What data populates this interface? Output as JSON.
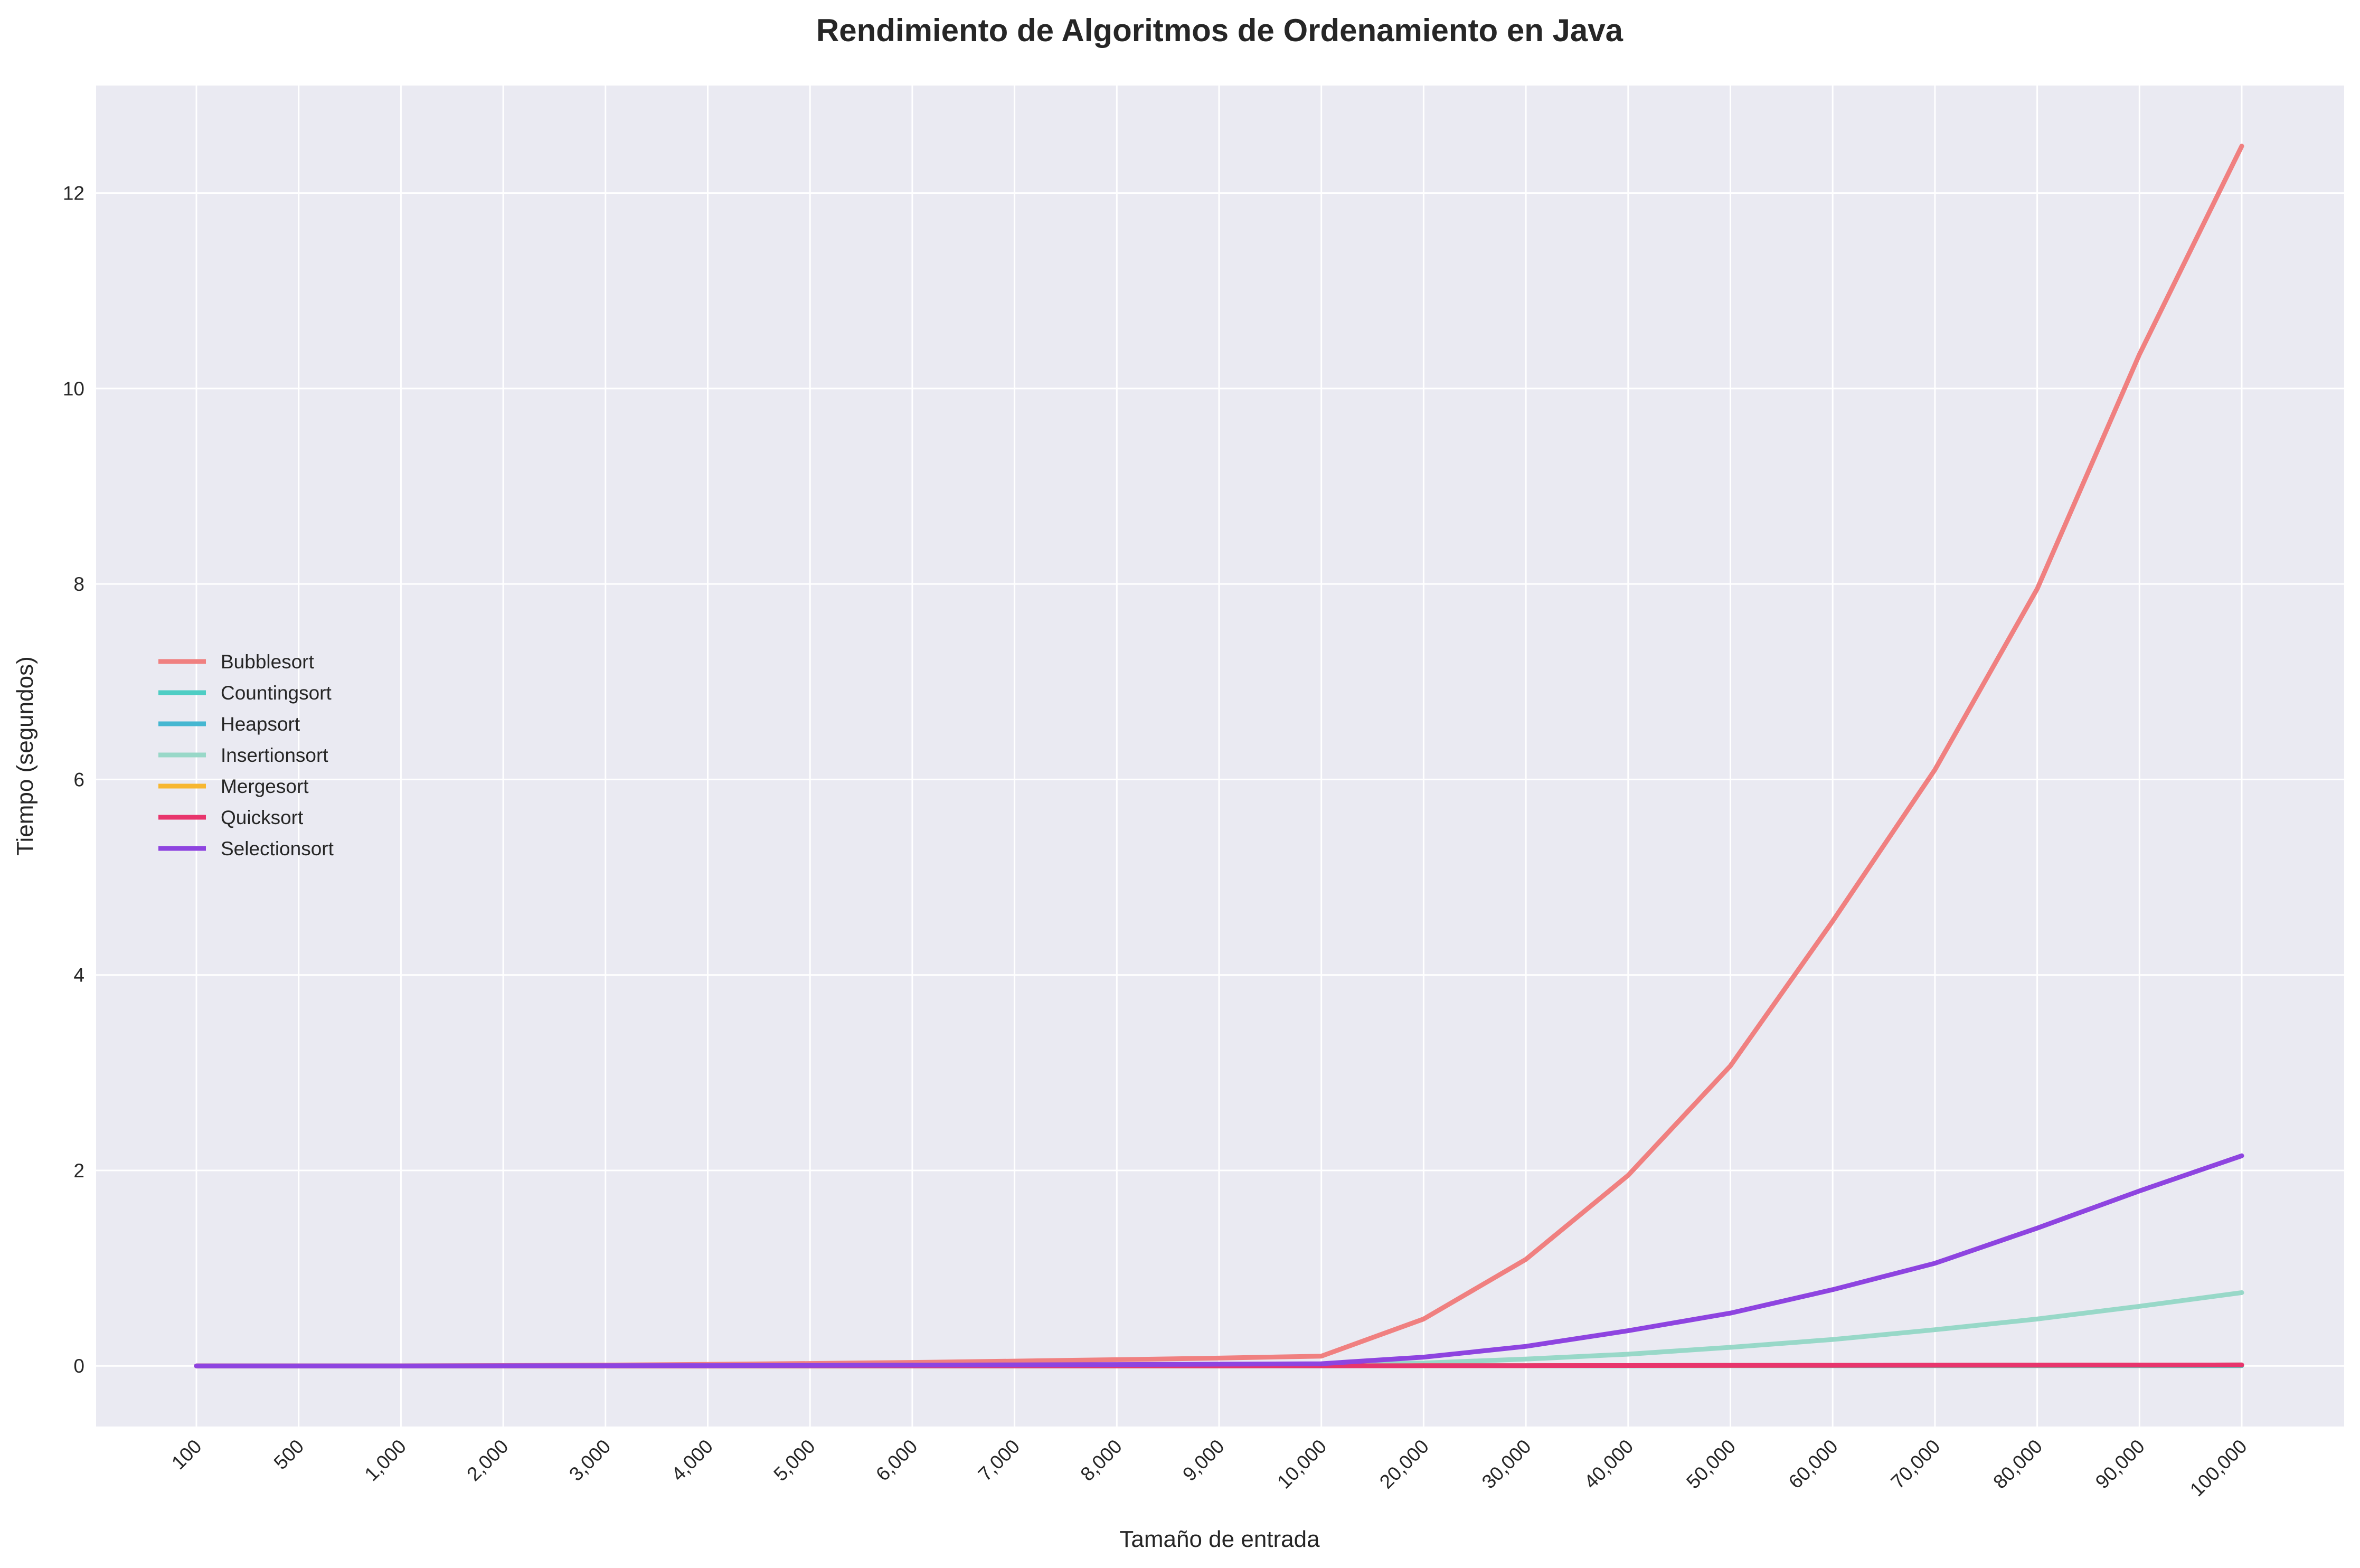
{
  "chart_data": {
    "type": "line",
    "title": "Rendimiento de Algoritmos de Ordenamiento en Java",
    "xlabel": "Tamaño de entrada",
    "ylabel": "Tiempo (segundos)",
    "x_scale": "categorical",
    "categories": [
      "100",
      "500",
      "1,000",
      "2,000",
      "3,000",
      "4,000",
      "5,000",
      "6,000",
      "7,000",
      "8,000",
      "9,000",
      "10,000",
      "20,000",
      "30,000",
      "40,000",
      "50,000",
      "60,000",
      "70,000",
      "80,000",
      "90,000",
      "100,000"
    ],
    "ylim": [
      -0.62,
      13.1
    ],
    "yticks": [
      0,
      2,
      4,
      6,
      8,
      10,
      12
    ],
    "grid": true,
    "legend_position": "center-left",
    "background_color": "#eaeaf2",
    "series": [
      {
        "name": "Bubblesort",
        "color": "#f08080",
        "values": [
          0.0001,
          0.0005,
          0.0012,
          0.004,
          0.009,
          0.016,
          0.025,
          0.036,
          0.049,
          0.064,
          0.08,
          0.1,
          0.48,
          1.09,
          1.95,
          3.07,
          4.55,
          6.1,
          7.95,
          10.35,
          12.48
        ]
      },
      {
        "name": "Countingsort",
        "color": "#4ecdc4",
        "values": [
          0,
          0,
          0,
          0,
          0,
          0,
          0,
          0,
          0,
          0,
          0,
          0,
          0.001,
          0.001,
          0.001,
          0.002,
          0.002,
          0.002,
          0.003,
          0.003,
          0.003
        ]
      },
      {
        "name": "Heapsort",
        "color": "#45b7d1",
        "values": [
          0,
          0,
          0,
          0.0002,
          0.0003,
          0.0004,
          0.0005,
          0.0006,
          0.0007,
          0.0008,
          0.0009,
          0.001,
          0.002,
          0.003,
          0.004,
          0.005,
          0.006,
          0.007,
          0.008,
          0.009,
          0.01
        ]
      },
      {
        "name": "Insertionsort",
        "color": "#98d8c8",
        "values": [
          0,
          0.0001,
          0.0002,
          0.0006,
          0.0013,
          0.0023,
          0.0035,
          0.005,
          0.0068,
          0.0089,
          0.011,
          0.014,
          0.03,
          0.07,
          0.12,
          0.19,
          0.27,
          0.37,
          0.48,
          0.61,
          0.75
        ]
      },
      {
        "name": "Mergesort",
        "color": "#f7b731",
        "values": [
          0,
          0,
          0,
          0.0002,
          0.0003,
          0.0004,
          0.0005,
          0.0006,
          0.0007,
          0.0008,
          0.0009,
          0.001,
          0.002,
          0.003,
          0.004,
          0.005,
          0.006,
          0.007,
          0.008,
          0.009,
          0.01
        ]
      },
      {
        "name": "Quicksort",
        "color": "#e8356d",
        "values": [
          0,
          0,
          0,
          0.0001,
          0.0002,
          0.0003,
          0.0004,
          0.0005,
          0.0006,
          0.0007,
          0.0008,
          0.001,
          0.002,
          0.003,
          0.004,
          0.005,
          0.006,
          0.007,
          0.008,
          0.009,
          0.01
        ]
      },
      {
        "name": "Selectionsort",
        "color": "#8e44e0",
        "values": [
          0,
          0.0001,
          0.0003,
          0.001,
          0.002,
          0.0035,
          0.0055,
          0.008,
          0.011,
          0.014,
          0.018,
          0.022,
          0.09,
          0.2,
          0.36,
          0.54,
          0.78,
          1.05,
          1.41,
          1.79,
          2.15
        ]
      }
    ]
  }
}
